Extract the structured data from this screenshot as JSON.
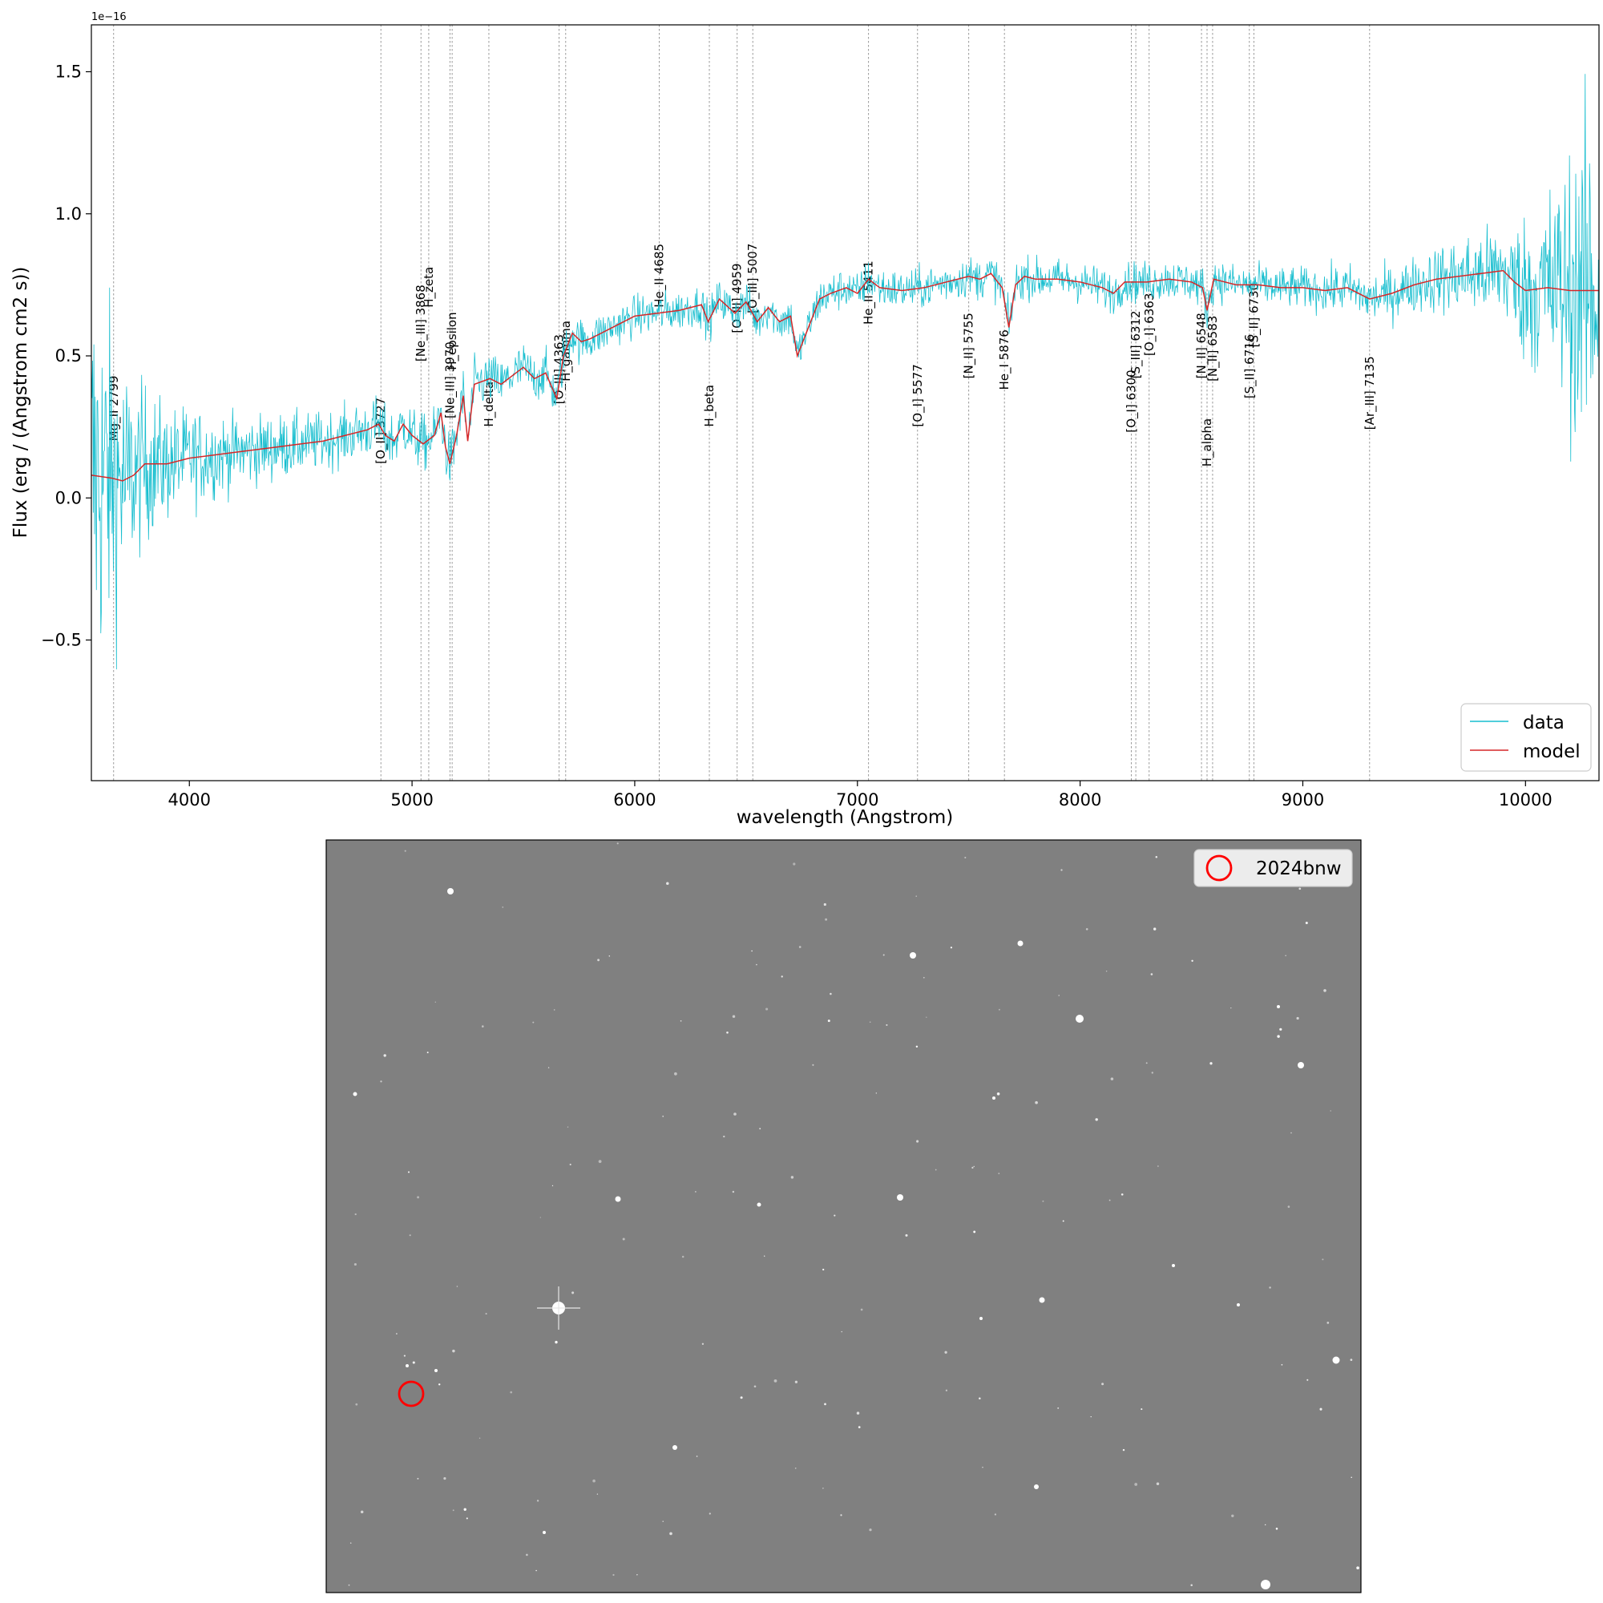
{
  "chart_data": [
    {
      "type": "line",
      "xlabel": "wavelength (Angstrom)",
      "ylabel": "Flux (erg / (Angstrom cm2 s))",
      "y_offset_text": "1e−16",
      "xlim": [
        3560,
        10330
      ],
      "ylim": [
        -0.995,
        1.665
      ],
      "xticks": [
        4000,
        5000,
        6000,
        7000,
        8000,
        9000,
        10000
      ],
      "yticks": [
        -0.5,
        0.0,
        0.5,
        1.0,
        1.5
      ],
      "ytick_labels": [
        "−0.5",
        "0.0",
        "0.5",
        "1.0",
        "1.5"
      ],
      "grid": false,
      "legend_position": "bottom-right",
      "series": [
        {
          "name": "data",
          "color": "#17becf",
          "noise_profile": [
            [
              3560,
              0.55
            ],
            [
              3650,
              0.4
            ],
            [
              3750,
              0.22
            ],
            [
              3900,
              0.14
            ],
            [
              4200,
              0.09
            ],
            [
              4600,
              0.07
            ],
            [
              5000,
              0.07
            ],
            [
              5500,
              0.06
            ],
            [
              6000,
              0.05
            ],
            [
              7000,
              0.05
            ],
            [
              8000,
              0.05
            ],
            [
              9000,
              0.05
            ],
            [
              9500,
              0.07
            ],
            [
              9900,
              0.12
            ],
            [
              10100,
              0.25
            ],
            [
              10330,
              0.45
            ]
          ]
        },
        {
          "name": "model",
          "color": "#d62728",
          "points": [
            [
              3560,
              0.08
            ],
            [
              3650,
              0.07
            ],
            [
              3700,
              0.06
            ],
            [
              3750,
              0.08
            ],
            [
              3800,
              0.12
            ],
            [
              3900,
              0.12
            ],
            [
              4000,
              0.14
            ],
            [
              4100,
              0.15
            ],
            [
              4200,
              0.16
            ],
            [
              4300,
              0.17
            ],
            [
              4400,
              0.18
            ],
            [
              4500,
              0.19
            ],
            [
              4600,
              0.2
            ],
            [
              4700,
              0.22
            ],
            [
              4800,
              0.24
            ],
            [
              4850,
              0.26
            ],
            [
              4880,
              0.22
            ],
            [
              4920,
              0.2
            ],
            [
              4960,
              0.26
            ],
            [
              5000,
              0.22
            ],
            [
              5050,
              0.19
            ],
            [
              5100,
              0.22
            ],
            [
              5130,
              0.3
            ],
            [
              5150,
              0.18
            ],
            [
              5170,
              0.12
            ],
            [
              5200,
              0.22
            ],
            [
              5230,
              0.36
            ],
            [
              5250,
              0.2
            ],
            [
              5280,
              0.4
            ],
            [
              5350,
              0.42
            ],
            [
              5400,
              0.4
            ],
            [
              5450,
              0.43
            ],
            [
              5500,
              0.46
            ],
            [
              5550,
              0.42
            ],
            [
              5600,
              0.44
            ],
            [
              5650,
              0.35
            ],
            [
              5680,
              0.5
            ],
            [
              5720,
              0.58
            ],
            [
              5760,
              0.55
            ],
            [
              5800,
              0.56
            ],
            [
              5850,
              0.58
            ],
            [
              5900,
              0.6
            ],
            [
              5950,
              0.62
            ],
            [
              6000,
              0.64
            ],
            [
              6100,
              0.65
            ],
            [
              6200,
              0.66
            ],
            [
              6300,
              0.68
            ],
            [
              6330,
              0.62
            ],
            [
              6380,
              0.7
            ],
            [
              6450,
              0.65
            ],
            [
              6500,
              0.69
            ],
            [
              6550,
              0.62
            ],
            [
              6600,
              0.67
            ],
            [
              6650,
              0.62
            ],
            [
              6700,
              0.64
            ],
            [
              6730,
              0.5
            ],
            [
              6780,
              0.6
            ],
            [
              6830,
              0.7
            ],
            [
              6880,
              0.72
            ],
            [
              6950,
              0.74
            ],
            [
              7000,
              0.72
            ],
            [
              7050,
              0.77
            ],
            [
              7100,
              0.74
            ],
            [
              7200,
              0.73
            ],
            [
              7300,
              0.74
            ],
            [
              7400,
              0.76
            ],
            [
              7500,
              0.78
            ],
            [
              7550,
              0.77
            ],
            [
              7600,
              0.79
            ],
            [
              7650,
              0.74
            ],
            [
              7680,
              0.6
            ],
            [
              7710,
              0.75
            ],
            [
              7750,
              0.78
            ],
            [
              7800,
              0.77
            ],
            [
              7900,
              0.77
            ],
            [
              8000,
              0.76
            ],
            [
              8100,
              0.74
            ],
            [
              8150,
              0.72
            ],
            [
              8200,
              0.76
            ],
            [
              8300,
              0.76
            ],
            [
              8400,
              0.77
            ],
            [
              8500,
              0.76
            ],
            [
              8550,
              0.74
            ],
            [
              8570,
              0.66
            ],
            [
              8600,
              0.77
            ],
            [
              8700,
              0.75
            ],
            [
              8800,
              0.75
            ],
            [
              8900,
              0.74
            ],
            [
              9000,
              0.74
            ],
            [
              9100,
              0.73
            ],
            [
              9200,
              0.74
            ],
            [
              9300,
              0.7
            ],
            [
              9400,
              0.72
            ],
            [
              9500,
              0.75
            ],
            [
              9600,
              0.77
            ],
            [
              9700,
              0.78
            ],
            [
              9800,
              0.79
            ],
            [
              9900,
              0.8
            ],
            [
              9950,
              0.76
            ],
            [
              10000,
              0.73
            ],
            [
              10100,
              0.74
            ],
            [
              10200,
              0.73
            ],
            [
              10330,
              0.73
            ]
          ]
        }
      ],
      "lines": [
        {
          "label": "Mg_II 2799",
          "x": 3660,
          "label_y": 0.2
        },
        {
          "label": "[O_II] 3727",
          "x": 4860,
          "label_y": 0.12
        },
        {
          "label": "[Ne_III] 3868",
          "x": 5040,
          "label_y": 0.48
        },
        {
          "label": "H_zeta",
          "x": 5075,
          "label_y": 0.67
        },
        {
          "label": "[Ne_III] 3970",
          "x": 5170,
          "label_y": 0.28
        },
        {
          "label": "H_epsilon",
          "x": 5180,
          "label_y": 0.45
        },
        {
          "label": "H_delta",
          "x": 5345,
          "label_y": 0.25
        },
        {
          "label": "[O_III] 4363",
          "x": 5660,
          "label_y": 0.33
        },
        {
          "label": "H_gamma",
          "x": 5690,
          "label_y": 0.41
        },
        {
          "label": "He_II 4685",
          "x": 6110,
          "label_y": 0.67
        },
        {
          "label": "H_beta",
          "x": 6335,
          "label_y": 0.25
        },
        {
          "label": "[O_III] 4959",
          "x": 6460,
          "label_y": 0.58
        },
        {
          "label": "[O_III] 5007",
          "x": 6530,
          "label_y": 0.65
        },
        {
          "label": "He_II 5411",
          "x": 7050,
          "label_y": 0.61
        },
        {
          "label": "[O_I] 5577",
          "x": 7270,
          "label_y": 0.25
        },
        {
          "label": "[N_II] 5755",
          "x": 7500,
          "label_y": 0.42
        },
        {
          "label": "He_I 5876",
          "x": 7660,
          "label_y": 0.38
        },
        {
          "label": "[O_I] 6300",
          "x": 8230,
          "label_y": 0.23
        },
        {
          "label": "[S_III] 6312",
          "x": 8250,
          "label_y": 0.42
        },
        {
          "label": "[O_I] 6363",
          "x": 8310,
          "label_y": 0.5
        },
        {
          "label": "[N_II] 6548",
          "x": 8545,
          "label_y": 0.42
        },
        {
          "label": "H_alpha",
          "x": 8570,
          "label_y": 0.11
        },
        {
          "label": "[N_II] 6583",
          "x": 8595,
          "label_y": 0.41
        },
        {
          "label": "[S_II] 6716",
          "x": 8760,
          "label_y": 0.35
        },
        {
          "label": "[S_II] 6730",
          "x": 8780,
          "label_y": 0.53
        },
        {
          "label": "[Ar_III] 7135",
          "x": 9300,
          "label_y": 0.24
        }
      ]
    },
    {
      "type": "image",
      "legend": [
        {
          "name": "2024bnw",
          "marker": "open-circle",
          "color": "#ff0000"
        }
      ]
    }
  ]
}
